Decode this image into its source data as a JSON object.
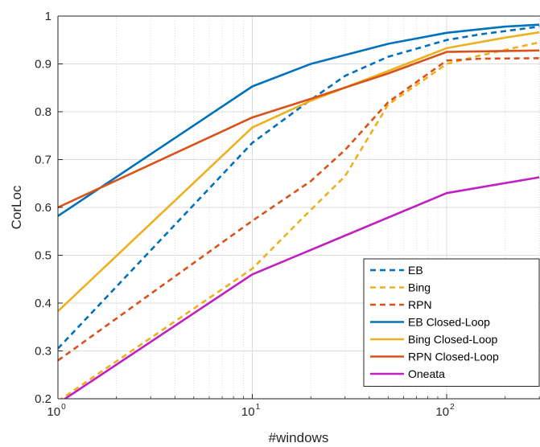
{
  "chart_data": {
    "type": "line",
    "xlabel": "#windows",
    "ylabel": "CorLoc",
    "x_scale": "log",
    "xlim": [
      1,
      300
    ],
    "ylim": [
      0.2,
      1.0
    ],
    "grid": true,
    "legend_position": "bottom-right",
    "x_ticks": [
      {
        "base": "10",
        "exp": "0"
      },
      {
        "base": "10",
        "exp": "1"
      },
      {
        "base": "10",
        "exp": "2"
      }
    ],
    "y_ticks": [
      "0.2",
      "0.3",
      "0.4",
      "0.5",
      "0.6",
      "0.7",
      "0.8",
      "0.9",
      "1"
    ],
    "series": [
      {
        "name": "EB",
        "color": "#0072BD",
        "dashed": true,
        "x": [
          1,
          10,
          20,
          30,
          50,
          100,
          150,
          300
        ],
        "y": [
          0.305,
          0.735,
          0.825,
          0.875,
          0.915,
          0.95,
          0.962,
          0.978
        ]
      },
      {
        "name": "Bing",
        "color": "#EDB120",
        "dashed": true,
        "x": [
          1,
          10,
          20,
          30,
          50,
          100,
          150,
          300
        ],
        "y": [
          0.195,
          0.472,
          0.595,
          0.665,
          0.815,
          0.9,
          0.918,
          0.945
        ]
      },
      {
        "name": "RPN",
        "color": "#D95319",
        "dashed": true,
        "x": [
          1,
          10,
          20,
          30,
          50,
          100,
          150,
          300
        ],
        "y": [
          0.28,
          0.572,
          0.655,
          0.72,
          0.82,
          0.907,
          0.911,
          0.912
        ]
      },
      {
        "name": "EB Closed-Loop",
        "color": "#0072BD",
        "dashed": false,
        "x": [
          1,
          10,
          20,
          50,
          100,
          200,
          300
        ],
        "y": [
          0.582,
          0.853,
          0.9,
          0.942,
          0.965,
          0.978,
          0.982
        ]
      },
      {
        "name": "Bing Closed-Loop",
        "color": "#EDB120",
        "dashed": false,
        "x": [
          1,
          10,
          20,
          50,
          100,
          200,
          300
        ],
        "y": [
          0.383,
          0.767,
          0.823,
          0.885,
          0.933,
          0.955,
          0.966
        ]
      },
      {
        "name": "RPN Closed-Loop",
        "color": "#D95319",
        "dashed": false,
        "x": [
          1,
          10,
          20,
          50,
          100,
          200,
          300
        ],
        "y": [
          0.6,
          0.788,
          0.827,
          0.88,
          0.925,
          0.927,
          0.928
        ]
      },
      {
        "name": "Oneata",
        "color": "#C020C0",
        "dashed": false,
        "x": [
          1,
          10,
          100,
          300
        ],
        "y": [
          0.19,
          0.46,
          0.63,
          0.663
        ]
      }
    ]
  }
}
